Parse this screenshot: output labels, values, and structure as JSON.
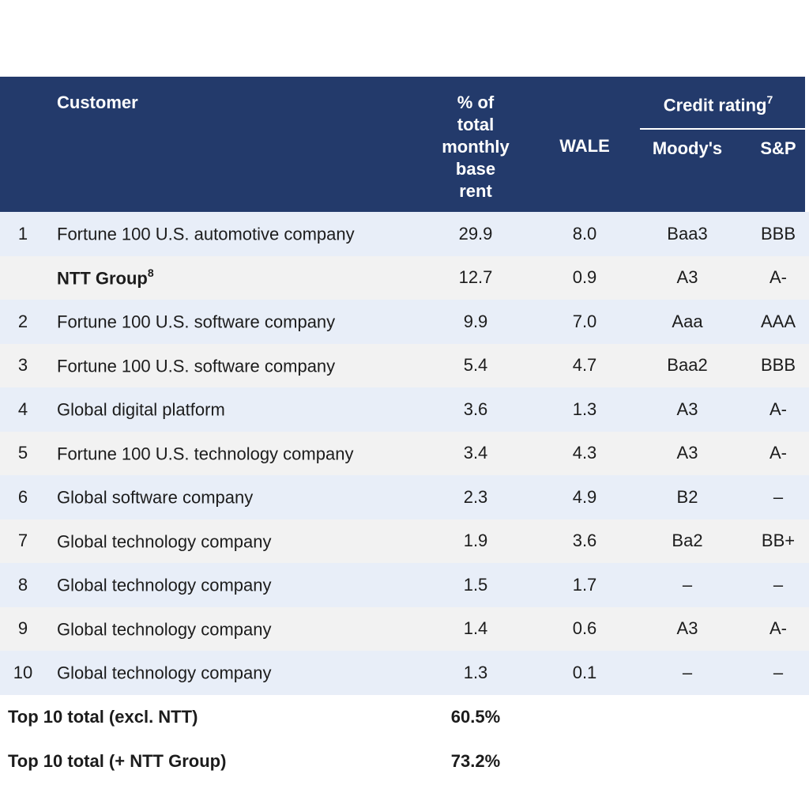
{
  "table": {
    "header": {
      "customer": "Customer",
      "pct_rent": "% of total monthly base rent",
      "wale": "WALE",
      "credit_rating": "Credit rating",
      "credit_rating_sup": "7",
      "moodys": "Moody's",
      "sp": "S&P"
    },
    "rows": [
      {
        "rank": "1",
        "customer": "Fortune 100 U.S. automotive company",
        "sup": "",
        "pct": "29.9",
        "wale": "8.0",
        "moodys": "Baa3",
        "sp": "BBB"
      },
      {
        "rank": "",
        "customer": "NTT Group",
        "sup": "8",
        "pct": "12.7",
        "wale": "0.9",
        "moodys": "A3",
        "sp": "A-"
      },
      {
        "rank": "2",
        "customer": "Fortune 100 U.S. software company",
        "sup": "",
        "pct": "9.9",
        "wale": "7.0",
        "moodys": "Aaa",
        "sp": "AAA"
      },
      {
        "rank": "3",
        "customer": "Fortune 100 U.S. software company",
        "sup": "",
        "pct": "5.4",
        "wale": "4.7",
        "moodys": "Baa2",
        "sp": "BBB"
      },
      {
        "rank": "4",
        "customer": "Global digital platform",
        "sup": "",
        "pct": "3.6",
        "wale": "1.3",
        "moodys": "A3",
        "sp": "A-"
      },
      {
        "rank": "5",
        "customer": "Fortune 100 U.S. technology company",
        "sup": "",
        "pct": "3.4",
        "wale": "4.3",
        "moodys": "A3",
        "sp": "A-"
      },
      {
        "rank": "6",
        "customer": "Global software company",
        "sup": "",
        "pct": "2.3",
        "wale": "4.9",
        "moodys": "B2",
        "sp": "–"
      },
      {
        "rank": "7",
        "customer": "Global technology company",
        "sup": "",
        "pct": "1.9",
        "wale": "3.6",
        "moodys": "Ba2",
        "sp": "BB+"
      },
      {
        "rank": "8",
        "customer": "Global technology company",
        "sup": "",
        "pct": "1.5",
        "wale": "1.7",
        "moodys": "–",
        "sp": "–"
      },
      {
        "rank": "9",
        "customer": "Global technology company",
        "sup": "",
        "pct": "1.4",
        "wale": "0.6",
        "moodys": "A3",
        "sp": "A-"
      },
      {
        "rank": "10",
        "customer": "Global technology company",
        "sup": "",
        "pct": "1.3",
        "wale": "0.1",
        "moodys": "–",
        "sp": "–"
      }
    ],
    "totals": [
      {
        "label": "Top 10 total (excl. NTT)",
        "value": "60.5%"
      },
      {
        "label": "Top 10 total (+ NTT Group)",
        "value": "73.2%"
      }
    ]
  },
  "colors": {
    "header_bg": "#233A6B",
    "header_text": "#FFFFFF",
    "row_alt_blue": "#E8EEF8",
    "row_alt_gray": "#F2F2F2",
    "body_text": "#1C1C1C"
  }
}
